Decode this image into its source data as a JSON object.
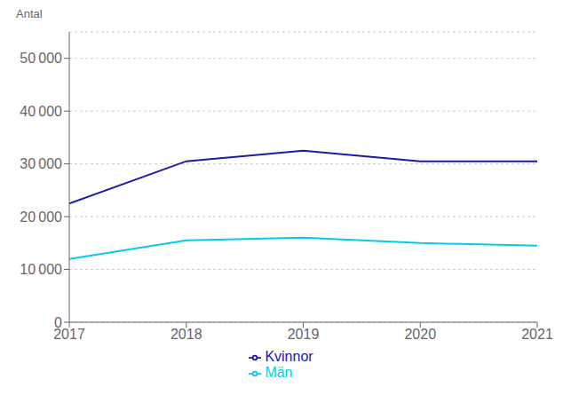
{
  "chart_data": {
    "type": "line",
    "ylabel": "Antal",
    "x": [
      2017,
      2018,
      2019,
      2020,
      2021
    ],
    "xlim": [
      2017,
      2021
    ],
    "xticks": [
      2017,
      2018,
      2019,
      2020,
      2021
    ],
    "ylim": [
      0,
      55000
    ],
    "yticks": [
      0,
      {
        "value": 10000,
        "label": "10 000"
      },
      {
        "value": 20000,
        "label": "20 000"
      },
      {
        "value": 30000,
        "label": "30 000"
      },
      {
        "value": 40000,
        "label": "40 000"
      },
      {
        "value": 50000,
        "label": "50 000"
      }
    ],
    "series": [
      {
        "name": "Kvinnor",
        "color": "#1a1aaa",
        "values": [
          22500,
          30500,
          32500,
          30500,
          30500
        ]
      },
      {
        "name": "Män",
        "color": "#00ccee",
        "values": [
          12000,
          15500,
          16000,
          15000,
          14500
        ]
      }
    ],
    "grid": true,
    "legend": "bottom"
  }
}
